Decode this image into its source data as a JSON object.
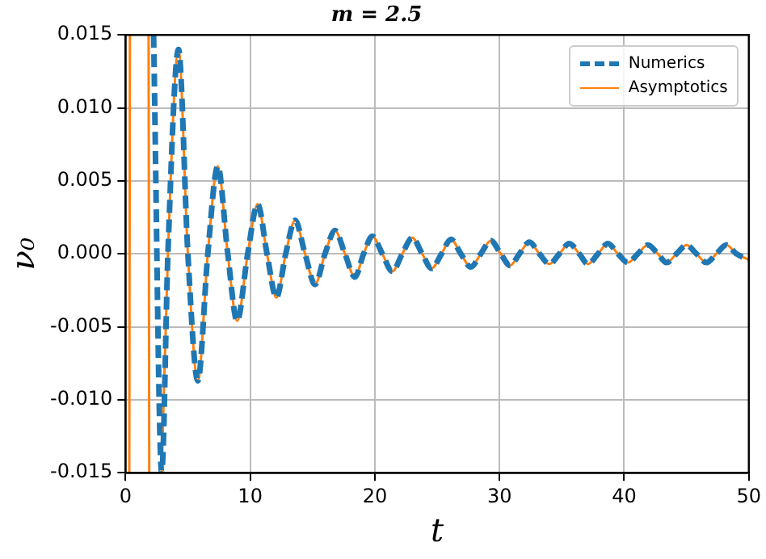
{
  "chart_data": {
    "type": "line",
    "title": "m = 2.5",
    "xlabel": "t",
    "ylabel": "ν₀",
    "xlim": [
      0,
      50
    ],
    "xticks": [
      0,
      10,
      20,
      30,
      40,
      50
    ],
    "ylim": [
      -0.015,
      0.015
    ],
    "yticks": [
      {
        "value": -0.015,
        "label": "-0.015"
      },
      {
        "value": -0.01,
        "label": "-0.010"
      },
      {
        "value": -0.005,
        "label": "-0.005"
      },
      {
        "value": 0,
        "label": "0.000"
      },
      {
        "value": 0.005,
        "label": "0.005"
      },
      {
        "value": 0.01,
        "label": "0.010"
      },
      {
        "value": 0.015,
        "label": "0.015"
      }
    ],
    "grid": true,
    "legend": "top right",
    "marker": "none",
    "series": [
      {
        "name": "Numerics",
        "color": "#1f77b4",
        "line_style": "dashed",
        "x": [
          2.25,
          2.9,
          3.4,
          4.25,
          5.0,
          5.8,
          6.6,
          7.4,
          8.2,
          8.95,
          9.8,
          10.6,
          11.35,
          12.1,
          12.85,
          13.6,
          14.4,
          15.2,
          16.0,
          16.8,
          17.6,
          18.4,
          19.1,
          19.8,
          20.6,
          21.4,
          22.2,
          23.0,
          23.8,
          24.55,
          25.35,
          26.1,
          26.9,
          27.7,
          28.5,
          29.3,
          30.1,
          30.85,
          31.6,
          32.4,
          33.2,
          34.0,
          34.8,
          35.6,
          36.4,
          37.1,
          37.9,
          38.7,
          39.5,
          40.3,
          41.1,
          41.9,
          42.7,
          43.4,
          44.2,
          45.0,
          45.8,
          46.6,
          47.4,
          48.2,
          49.0,
          50
        ],
        "values": [
          0.015,
          -0.015,
          0,
          0.014,
          0,
          -0.0087,
          0,
          0.006,
          0,
          -0.0046,
          0,
          0.0034,
          0,
          -0.003,
          0,
          0.0023,
          0,
          -0.0021,
          0,
          0.0016,
          0,
          -0.0016,
          0,
          0.0012,
          0,
          -0.0012,
          0,
          0.0011,
          0,
          -0.001,
          0,
          0.001,
          0,
          -0.0009,
          0,
          0.0009,
          0,
          -0.0008,
          0,
          0.0008,
          0,
          -0.0007,
          0,
          0.0007,
          0,
          -0.0007,
          0,
          0.0007,
          0,
          -0.0006,
          0,
          0.0006,
          0,
          -0.0006,
          0,
          0.0006,
          0,
          -0.0006,
          0,
          0.0006,
          0,
          -0.0004
        ]
      },
      {
        "name": "Asymptotics",
        "color": "#ff7f0e",
        "line_style": "solid",
        "x": [
          0.3,
          0.35,
          1.0,
          1.85,
          1.9,
          2.5,
          2.9,
          3.4,
          4.25,
          5.0,
          5.8,
          6.6,
          7.4,
          8.2,
          8.95,
          9.8,
          10.6,
          11.35,
          12.1,
          12.85,
          13.6,
          14.4,
          15.2,
          16.0,
          16.8,
          17.6,
          18.4,
          19.1,
          19.8,
          20.6,
          21.4,
          22.2,
          23.0,
          23.8,
          24.55,
          25.35,
          26.1,
          26.9,
          27.7,
          28.5,
          29.3,
          30.1,
          30.85,
          31.6,
          32.4,
          33.2,
          34.0,
          34.8,
          35.6,
          36.4,
          37.1,
          37.9,
          38.7,
          39.5,
          40.3,
          41.1,
          41.9,
          42.7,
          43.4,
          44.2,
          45.0,
          45.8,
          46.6,
          47.4,
          48.2,
          49.0,
          50
        ],
        "values": [
          -0.015,
          0.015,
          null,
          0.015,
          -0.015,
          null,
          -0.015,
          0,
          0.014,
          0,
          -0.0087,
          0,
          0.006,
          0,
          -0.0046,
          0,
          0.0034,
          0,
          -0.003,
          0,
          0.0023,
          0,
          -0.0021,
          0,
          0.0016,
          0,
          -0.0016,
          0,
          0.0012,
          0,
          -0.0012,
          0,
          0.0011,
          0,
          -0.001,
          0,
          0.001,
          0,
          -0.0009,
          0,
          0.0009,
          0,
          -0.0008,
          0,
          0.0008,
          0,
          -0.0007,
          0,
          0.0007,
          0,
          -0.0007,
          0,
          0.0007,
          0,
          -0.0006,
          0,
          0.0006,
          0,
          -0.0006,
          0,
          0.0006,
          0,
          -0.0006,
          0,
          0.0006,
          0,
          -0.0004
        ]
      }
    ]
  }
}
